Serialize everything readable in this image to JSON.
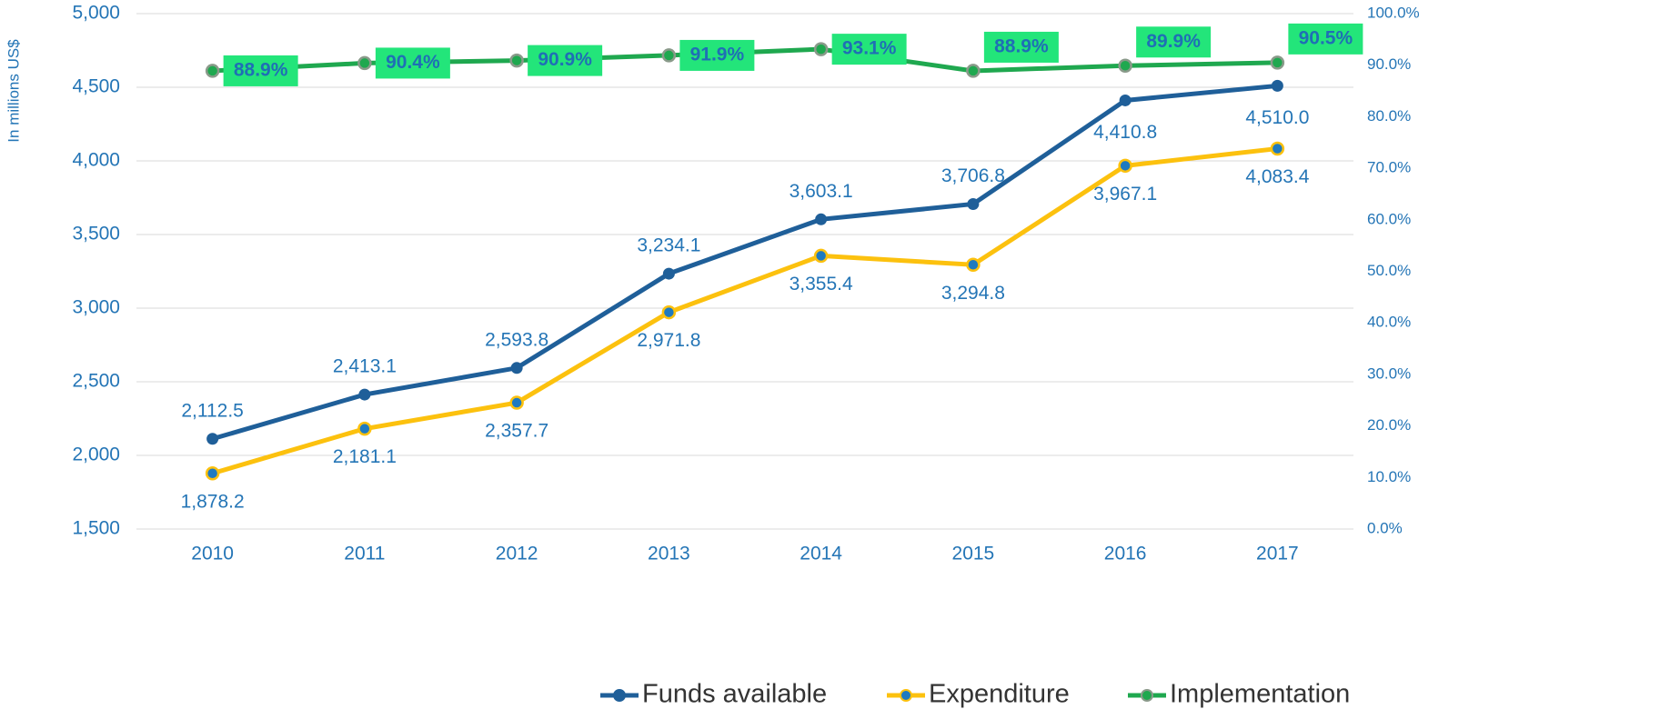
{
  "chart_data": {
    "type": "line",
    "y_label": "In millions US$",
    "categories": [
      "2010",
      "2011",
      "2012",
      "2013",
      "2014",
      "2015",
      "2016",
      "2017"
    ],
    "series": [
      {
        "name": "Funds available",
        "color": "#1f5f99",
        "values": [
          2112.5,
          2413.1,
          2593.8,
          3234.1,
          3603.1,
          3706.8,
          4410.8,
          4510.0
        ],
        "value_labels": [
          "2,112.5",
          "2,413.1",
          "2,593.8",
          "3,234.1",
          "3,603.1",
          "3,706.8",
          "4,410.8",
          "4,510.0"
        ]
      },
      {
        "name": "Expenditure",
        "color": "#fcc10e",
        "values": [
          1878.2,
          2181.1,
          2357.7,
          2971.8,
          3355.4,
          3294.8,
          3967.1,
          4083.4
        ],
        "value_labels": [
          "1,878.2",
          "2,181.1",
          "2,357.7",
          "2,971.8",
          "3,355.4",
          "3,294.8",
          "3,967.1",
          "4,083.4"
        ]
      },
      {
        "name": "Implementation",
        "color": "#1fa84f",
        "axis": "y2",
        "values": [
          88.9,
          90.4,
          90.9,
          91.9,
          93.1,
          88.9,
          89.9,
          90.5
        ],
        "value_labels": [
          "88.9%",
          "90.4%",
          "90.9%",
          "91.9%",
          "93.1%",
          "88.9%",
          "89.9%",
          "90.5%"
        ]
      }
    ],
    "ylim": [
      1500,
      5000
    ],
    "yticks": [
      {
        "value": 1500,
        "label": "1,500"
      },
      {
        "value": 2000,
        "label": "2,000"
      },
      {
        "value": 2500,
        "label": "2,500"
      },
      {
        "value": 3000,
        "label": "3,000"
      },
      {
        "value": 3500,
        "label": "3,500"
      },
      {
        "value": 4000,
        "label": "4,000"
      },
      {
        "value": 4500,
        "label": "4,500"
      },
      {
        "value": 5000,
        "label": "5,000"
      }
    ],
    "y2lim": [
      0,
      100
    ],
    "y2ticks": [
      {
        "value": 0,
        "label": "0.0%"
      },
      {
        "value": 10,
        "label": "10.0%"
      },
      {
        "value": 20,
        "label": "20.0%"
      },
      {
        "value": 30,
        "label": "30.0%"
      },
      {
        "value": 40,
        "label": "40.0%"
      },
      {
        "value": 50,
        "label": "50.0%"
      },
      {
        "value": 60,
        "label": "60.0%"
      },
      {
        "value": 70,
        "label": "70.0%"
      },
      {
        "value": 80,
        "label": "80.0%"
      },
      {
        "value": 90,
        "label": "90.0%"
      },
      {
        "value": 100,
        "label": "100.0%"
      }
    ],
    "grid": true,
    "legend": "bottom"
  }
}
